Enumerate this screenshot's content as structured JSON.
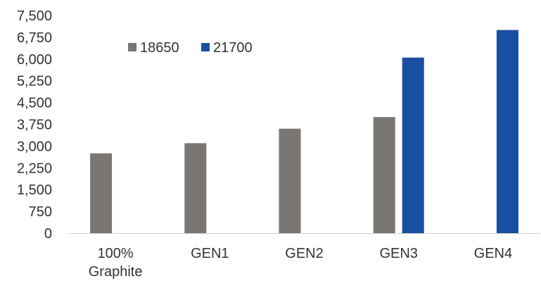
{
  "chart_data": {
    "type": "bar",
    "title": "",
    "xlabel": "",
    "ylabel": "",
    "categories": [
      [
        "100%",
        "Graphite"
      ],
      [
        "GEN1"
      ],
      [
        "GEN2"
      ],
      [
        "GEN3"
      ],
      [
        "GEN4"
      ]
    ],
    "series": [
      {
        "name": "18650",
        "color": "#7a7674",
        "values": [
          2750,
          3100,
          3600,
          4000,
          null
        ]
      },
      {
        "name": "21700",
        "color": "#1a4ea0",
        "values": [
          null,
          null,
          null,
          6050,
          7000
        ]
      }
    ],
    "ylim": [
      0,
      7500
    ],
    "yticks": [
      "0",
      "750",
      "1,500",
      "2,250",
      "3,000",
      "3,750",
      "4,500",
      "5,250",
      "6,000",
      "6,750",
      "7,500"
    ],
    "grid": false,
    "legend_position": "top-left"
  }
}
